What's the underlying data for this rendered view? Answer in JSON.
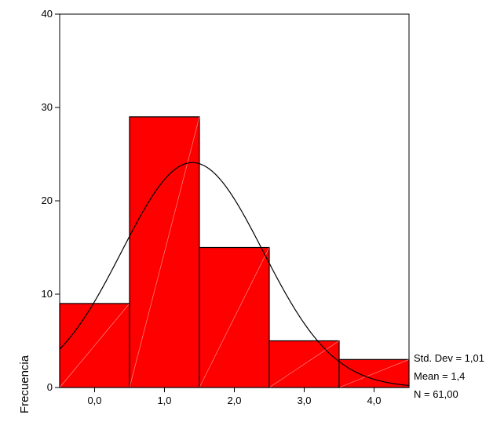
{
  "chart_data": {
    "type": "bar",
    "subtype": "histogram-with-normal-curve",
    "categories": [
      "0,0",
      "1,0",
      "2,0",
      "3,0",
      "4,0"
    ],
    "bin_centers": [
      0,
      1,
      2,
      3,
      4
    ],
    "bin_width": 1,
    "values": [
      9,
      29,
      15,
      5,
      3
    ],
    "xlim": [
      -0.5,
      4.5
    ],
    "ylim": [
      0,
      40
    ],
    "yticks": [
      0,
      10,
      20,
      30,
      40
    ],
    "ylabel": "Frecuencia",
    "xlabel": "",
    "grid": false,
    "bar_color": "#ff0000",
    "normal_curve": {
      "mean": 1.4,
      "std": 1.01,
      "n": 61
    },
    "stats": [
      "Std. Dev = 1,01",
      "Mean = 1,4",
      "N = 61,00"
    ]
  }
}
